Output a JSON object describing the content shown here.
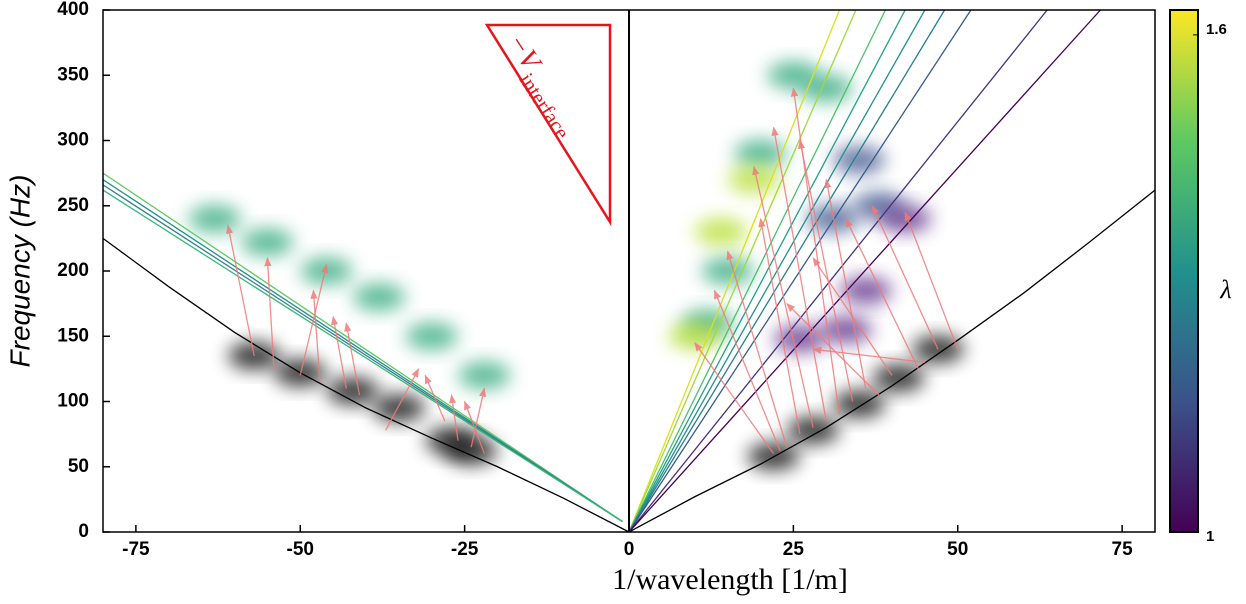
{
  "chart_data": {
    "type": "line",
    "x_label": "1/wavelength [1/m]",
    "y_label": "Frequency (Hz)",
    "annotation": {
      "text": "−V",
      "subscript": "interface",
      "color": "#e8141c"
    },
    "xlim": [
      -80,
      80
    ],
    "ylim": [
      0,
      400
    ],
    "xticks": [
      -75,
      -50,
      -25,
      0,
      25,
      50,
      75
    ],
    "yticks": [
      0,
      50,
      100,
      150,
      200,
      250,
      300,
      350,
      400
    ],
    "colorbar": {
      "label": "λ",
      "lim": [
        1,
        1.63
      ],
      "ticks": [
        1,
        1.6
      ],
      "colors": [
        "#440154",
        "#3b528b",
        "#21918c",
        "#5ec962",
        "#fde725"
      ]
    },
    "blobs": [
      {
        "color": "#000000",
        "x": [
          -57,
          -50,
          -42,
          -35,
          -27,
          -24,
          22,
          28,
          35,
          41,
          47
        ],
        "values": [
          135,
          122,
          108,
          95,
          70,
          62,
          58,
          78,
          98,
          118,
          140
        ]
      },
      {
        "color": "#2fa87c",
        "x": [
          -63,
          -55,
          -46,
          -38,
          -30,
          -22,
          12,
          15,
          20,
          25,
          30
        ],
        "values": [
          240,
          222,
          200,
          180,
          150,
          120,
          160,
          200,
          290,
          350,
          340
        ]
      },
      {
        "color": "#b5de2b",
        "x": [
          19,
          14,
          10
        ],
        "values": [
          270,
          230,
          150
        ]
      },
      {
        "color": "#3b528b",
        "x": [
          35,
          31,
          38
        ],
        "values": [
          285,
          240,
          250
        ]
      },
      {
        "color": "#5b2a86",
        "x": [
          36,
          42,
          26,
          33
        ],
        "values": [
          185,
          240,
          148,
          155
        ]
      }
    ],
    "arrows": {
      "color": "#f07a7a",
      "x0": [
        -57,
        -54,
        -50,
        -47,
        -43,
        -41,
        -37,
        -28,
        -26,
        -24,
        -22,
        22,
        23,
        24,
        26,
        28,
        30,
        32,
        34,
        36,
        40,
        44,
        47,
        50,
        45,
        38
      ],
      "y0": [
        135,
        125,
        120,
        115,
        110,
        105,
        78,
        85,
        70,
        65,
        60,
        60,
        62,
        65,
        75,
        80,
        85,
        90,
        100,
        110,
        120,
        125,
        140,
        140,
        130,
        105
      ],
      "x1": [
        -61,
        -55,
        -46,
        -48,
        -45,
        -43,
        -32,
        -31,
        -27,
        -22,
        -25,
        10,
        13,
        15,
        20,
        19,
        22,
        25,
        26,
        30,
        28,
        33,
        37,
        42,
        28,
        24
      ],
      "y1": [
        235,
        210,
        205,
        185,
        165,
        160,
        125,
        120,
        105,
        110,
        100,
        145,
        185,
        215,
        240,
        280,
        310,
        340,
        300,
        270,
        210,
        240,
        250,
        245,
        140,
        175
      ]
    },
    "series": [
      {
        "color": "#000000",
        "x": [
          -80,
          -70,
          -60,
          -50,
          -40,
          -30,
          -20,
          -10,
          0
        ],
        "values": [
          225,
          188,
          153,
          122,
          95,
          72,
          50,
          26,
          0
        ]
      },
      {
        "color": "#000000",
        "x": [
          0,
          10,
          20,
          30,
          40,
          50,
          60,
          70,
          80
        ],
        "values": [
          0,
          27,
          52,
          80,
          112,
          147,
          183,
          222,
          262
        ]
      },
      {
        "color": "#5ec962",
        "x": [
          -80,
          -1
        ],
        "values": [
          275,
          8
        ]
      },
      {
        "color": "#21918c",
        "x": [
          -80,
          -1
        ],
        "values": [
          270,
          8
        ]
      },
      {
        "color": "#3b7c8e",
        "x": [
          -80,
          -1
        ],
        "values": [
          266,
          8
        ]
      },
      {
        "color": "#35b779",
        "x": [
          -80,
          -1
        ],
        "values": [
          262,
          8
        ]
      },
      {
        "color": "#d8e219",
        "x": [
          0,
          32
        ],
        "values": [
          0,
          400
        ]
      },
      {
        "color": "#a0da39",
        "x": [
          0,
          34.5
        ],
        "values": [
          0,
          400
        ]
      },
      {
        "color": "#4ac16d",
        "x": [
          0,
          39
        ],
        "values": [
          0,
          400
        ]
      },
      {
        "color": "#1fa187",
        "x": [
          0,
          42
        ],
        "values": [
          0,
          400
        ]
      },
      {
        "color": "#21918c",
        "x": [
          0,
          45
        ],
        "values": [
          0,
          400
        ]
      },
      {
        "color": "#277f8e",
        "x": [
          0,
          48
        ],
        "values": [
          0,
          400
        ]
      },
      {
        "color": "#365c8d",
        "x": [
          0,
          52
        ],
        "values": [
          0,
          400
        ]
      },
      {
        "color": "#46327e",
        "x": [
          0,
          63.6
        ],
        "values": [
          0,
          400
        ]
      },
      {
        "color": "#440154",
        "x": [
          0,
          71.7
        ],
        "values": [
          0,
          400
        ]
      }
    ]
  }
}
